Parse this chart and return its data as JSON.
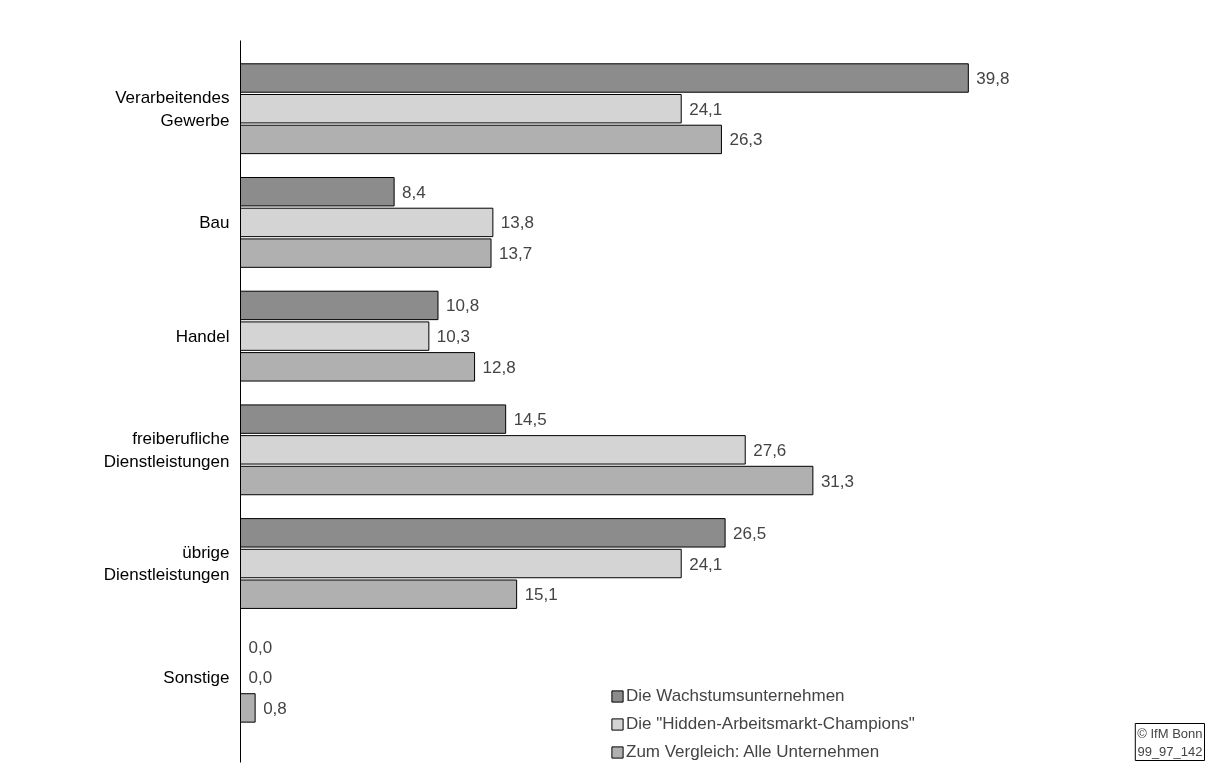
{
  "chart_data": {
    "type": "bar",
    "orientation": "horizontal",
    "categories": [
      "Verarbeitendes Gewerbe",
      "Bau",
      "Handel",
      "freiberufliche Dienstleistungen",
      "übrige Dienstleistungen",
      "Sonstige"
    ],
    "series": [
      {
        "name": "Die Wachstumsunternehmen",
        "color": "#8c8c8c",
        "values": [
          39.8,
          8.4,
          10.8,
          14.5,
          26.5,
          0.0
        ],
        "value_labels": [
          "39,8",
          "8,4",
          "10,8",
          "14,5",
          "26,5",
          "0,0"
        ]
      },
      {
        "name": "Die \"Hidden-Arbeitsmarkt-Champions\"",
        "color": "#d4d4d4",
        "values": [
          24.1,
          13.8,
          10.3,
          27.6,
          24.1,
          0.0
        ],
        "value_labels": [
          "24,1",
          "13,8",
          "10,3",
          "27,6",
          "24,1",
          "0,0"
        ]
      },
      {
        "name": "Zum Vergleich: Alle Unternehmen",
        "color": "#b0b0b0",
        "values": [
          26.3,
          13.7,
          12.8,
          31.3,
          15.1,
          0.8
        ],
        "value_labels": [
          "26,3",
          "13,7",
          "12,8",
          "31,3",
          "15,1",
          "0,8"
        ]
      }
    ],
    "legend": "bottom right",
    "grid": false,
    "tick_labels": "y",
    "annotations": [
      "© IfM Bonn\n99_97_142"
    ]
  }
}
